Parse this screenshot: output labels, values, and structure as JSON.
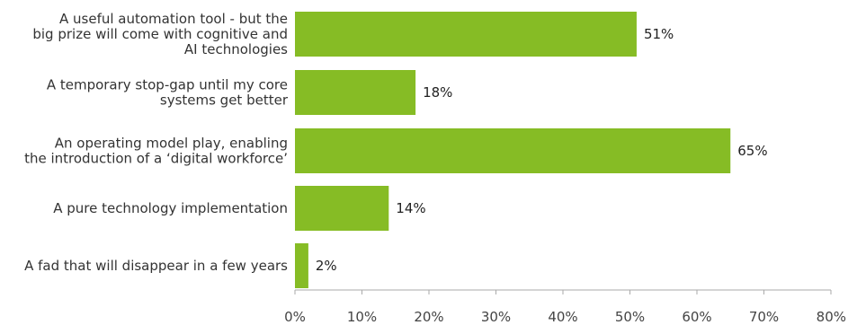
{
  "chart_data": {
    "type": "bar",
    "orientation": "horizontal",
    "categories": [
      [
        "A useful automation tool - but the",
        "big prize will come with cognitive and",
        "AI technologies"
      ],
      [
        "A temporary stop-gap until my core",
        "systems get better"
      ],
      [
        "An operating model play, enabling",
        "the introduction of a ‘digital workforce’"
      ],
      [
        "A pure technology implementation"
      ],
      [
        "A fad that will disappear in a few years"
      ]
    ],
    "values": [
      51,
      18,
      65,
      14,
      2
    ],
    "value_labels": [
      "51%",
      "18%",
      "65%",
      "14%",
      "2%"
    ],
    "xlim": [
      0,
      80
    ],
    "x_ticks": [
      0,
      10,
      20,
      30,
      40,
      50,
      60,
      70,
      80
    ],
    "x_tick_labels": [
      "0%",
      "10%",
      "20%",
      "30%",
      "40%",
      "50%",
      "60%",
      "70%",
      "80%"
    ],
    "title": "",
    "xlabel": "",
    "ylabel": "",
    "grid": false,
    "bar_color": "#86bc25",
    "axis_color": "#aaaaaa"
  }
}
